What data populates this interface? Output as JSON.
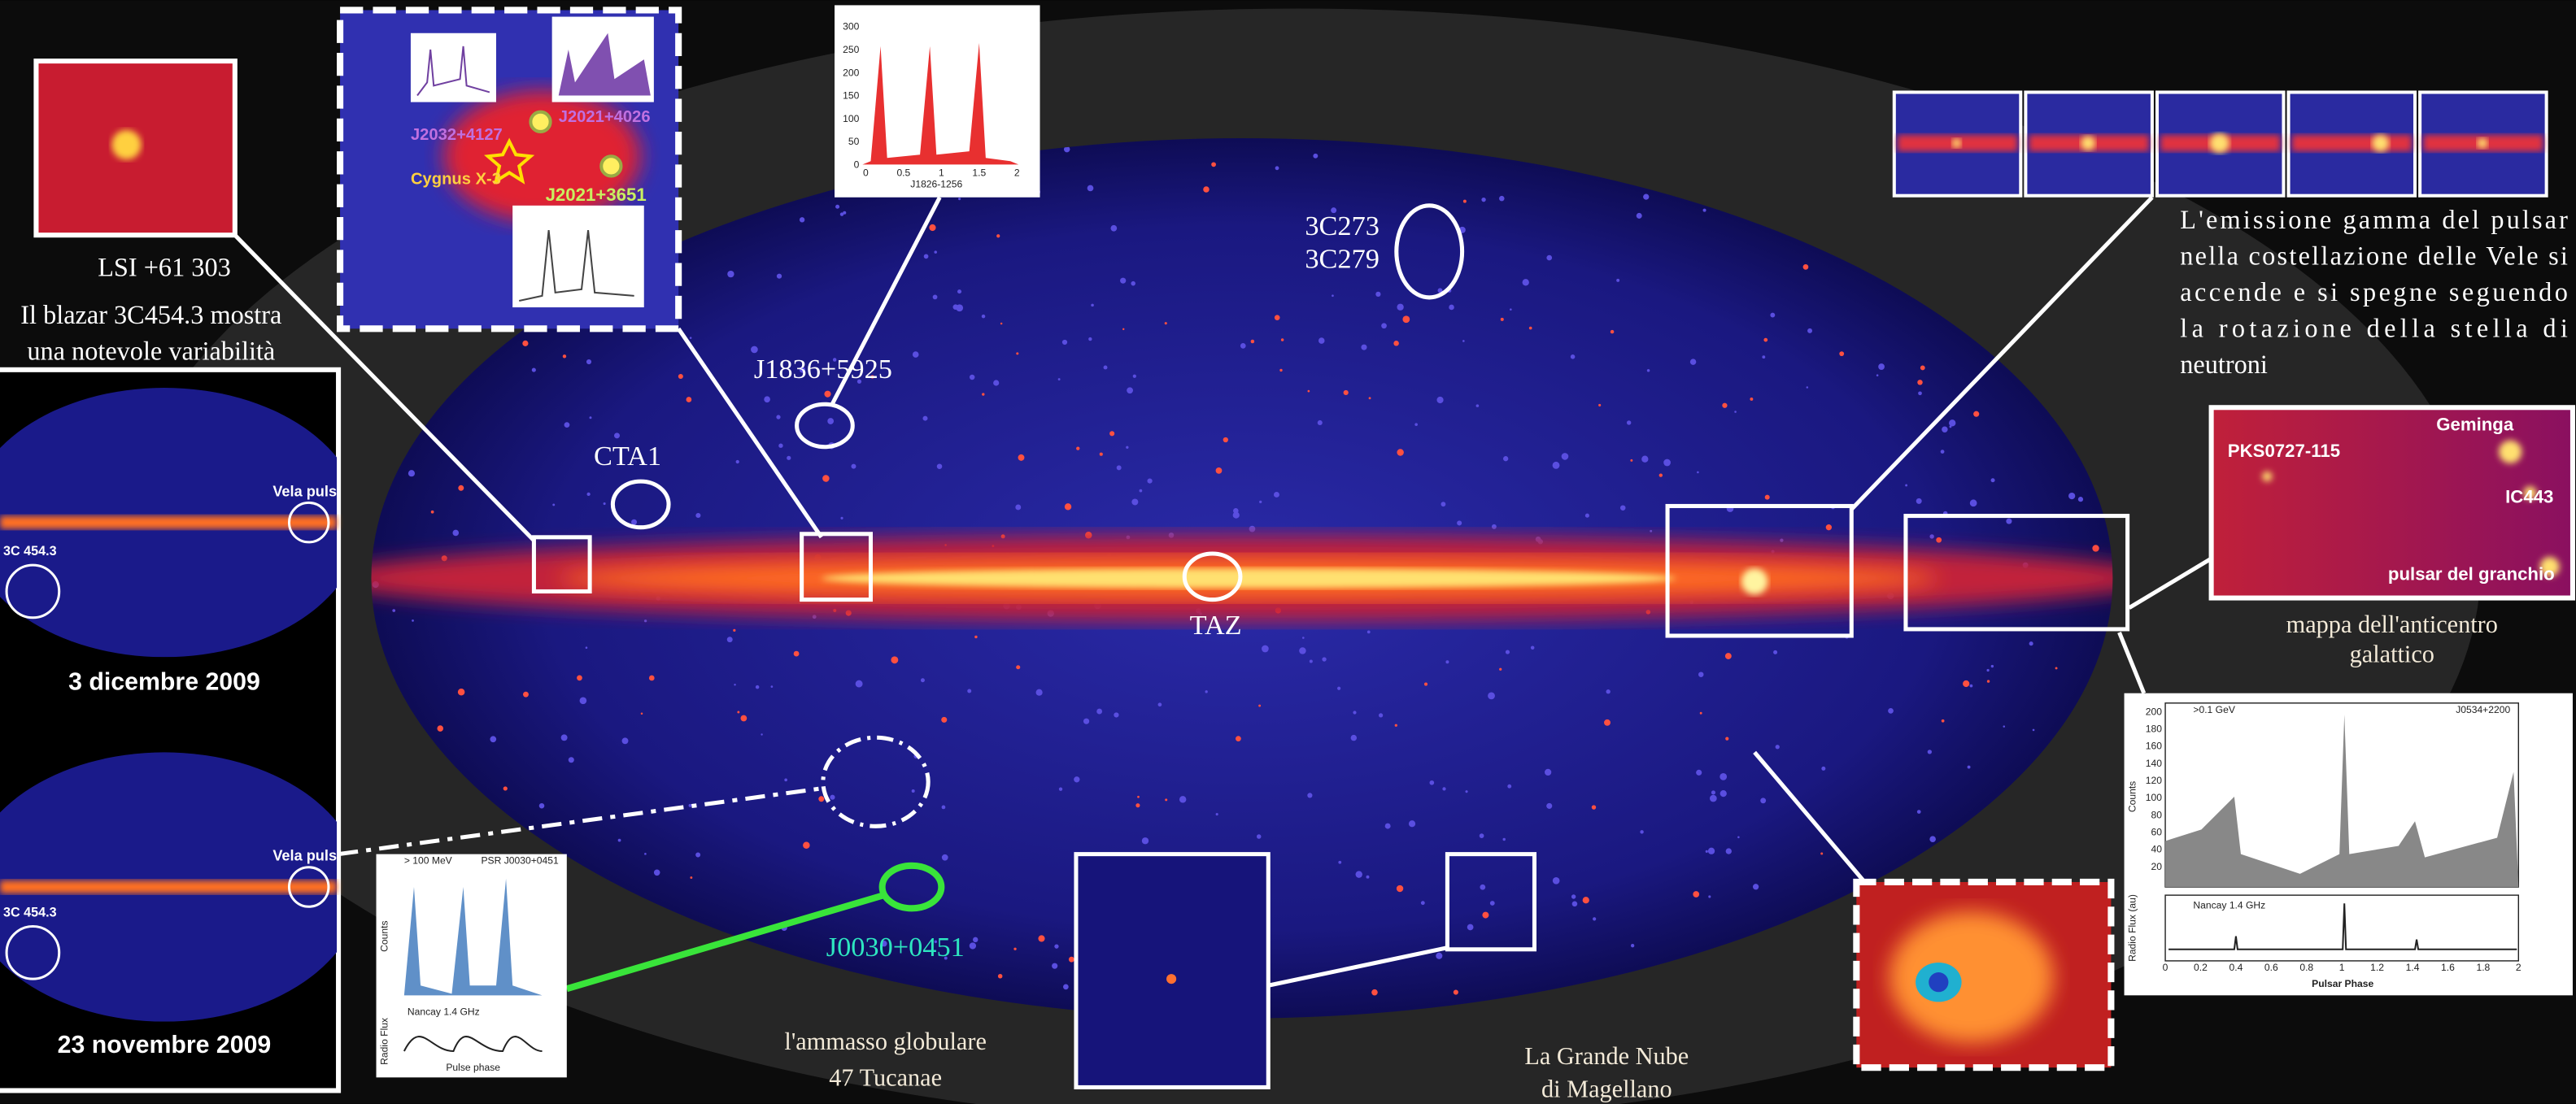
{
  "labels": {
    "lsi": "LSI +61 303",
    "blazar": [
      "Il blazar 3C454.3 mostra",
      "una notevole variabilità"
    ],
    "vela_short": "Vela puls",
    "blazar_src": "3C 454.3",
    "date1": "3 dicembre 2009",
    "date2": "23 novembre 2009",
    "src_3c273": "3C273",
    "src_3c279": "3C279",
    "j1836": "J1836+5925",
    "cta1": "CTA1",
    "taz": "TAZ",
    "j0030": "J0030+0451",
    "tucanae": [
      "l'ammasso globulare",
      "47 Tucanae"
    ],
    "lmc": [
      "La Grande Nube",
      "di Magellano"
    ],
    "vela_text": [
      "L'emissione gamma del pulsar",
      "nella costellazione delle Vele si",
      "accende e si spegne seguendo",
      "la rotazione della stella di",
      "neutroni"
    ],
    "anticentro": [
      "mappa dell'anticentro",
      "galattico"
    ]
  },
  "cygnus": {
    "j2032": "J2032+4127",
    "j2021a": "J2021+4026",
    "cyg": "Cygnus X-3",
    "j2021b": "J2021+3651"
  },
  "anticentro_map": {
    "geminga": "Geminga",
    "pks": "PKS0727-115",
    "ic443": "IC443",
    "crab": "pulsar del granchio"
  },
  "j1826_plot": {
    "name": "J1826-1256",
    "yticks": [
      0,
      50,
      100,
      150,
      200,
      250,
      300
    ],
    "xticks": [
      0,
      0.5,
      1,
      1.5,
      2
    ]
  },
  "crab_plot": {
    "energy": ">0.1 GeV",
    "name": "J0534+2200",
    "y_label": "Counts",
    "radio": "Nancay 1.4 GHz",
    "radio_label": "Radio Flux (au)",
    "x_label": "Pulsar Phase",
    "yticks": [
      20,
      40,
      60,
      80,
      100,
      120,
      140,
      160,
      180,
      200
    ],
    "xticks": [
      0,
      0.2,
      0.4,
      0.6,
      0.8,
      1,
      1.2,
      1.4,
      1.6,
      1.8,
      2
    ]
  },
  "j0030_plot": {
    "energy": "> 100 MeV",
    "name": "PSR J0030+0451",
    "y_label": "Counts",
    "radio": "Nancay 1.4 GHz",
    "radio_label": "Radio Flux",
    "x_label": "Pulse phase"
  }
}
